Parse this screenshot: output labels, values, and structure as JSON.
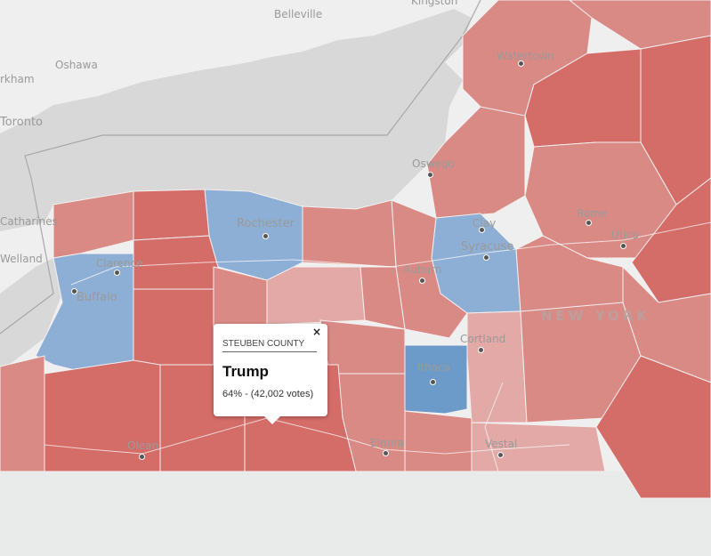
{
  "colors": {
    "lake": "#d8d8d8",
    "land_outside": "#efefef",
    "trump_strong": "#d46c68",
    "trump_medium": "#d98a85",
    "trump_light": "#e2a9a6",
    "clinton_medium": "#8eafd5",
    "clinton_strong": "#6d9bc9"
  },
  "places": {
    "kingston": "Kingston",
    "belleville": "Belleville",
    "oshawa": "Oshawa",
    "markham": "rkham",
    "toronto": "Toronto",
    "watertown": "Watertown",
    "oswego": "Oswego",
    "rome": "Rome",
    "utica": "Utica",
    "clay": "Clay",
    "syracuse": "Syracuse",
    "auburn": "Auburn",
    "cortland": "Cortland",
    "ithaca": "Ithaca",
    "elmira": "Elmira",
    "vestal": "Vestal",
    "olean": "Olean",
    "rochester": "Rochester",
    "clarence": "Clarence",
    "buffalo": "Buffalo",
    "catharines": "Catharines",
    "welland": "Welland"
  },
  "state_label": "NEW YORK",
  "popup": {
    "close": "×",
    "county": "STEUBEN COUNTY",
    "winner": "Trump",
    "result": "64% - (42,002 votes)",
    "percent": 64,
    "votes": 42002
  }
}
